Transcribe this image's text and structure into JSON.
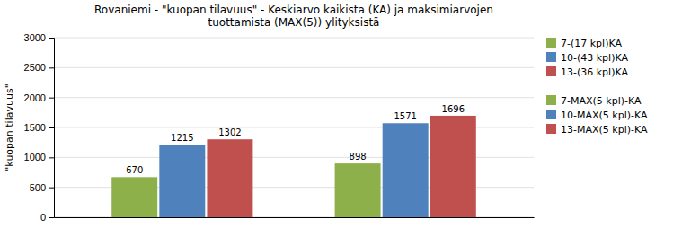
{
  "chart_data": {
    "type": "bar",
    "title": "Rovaniemi - \"kuopan tilavuus\" - Keskiarvo kaikista (KA) ja maksimiarvojen\ntuottamista (MAX(5)) ylityksistä",
    "y_label": "\"kuopan tilavuus\"",
    "categories": [
      null,
      null
    ],
    "series": [
      {
        "name": "7-(17 kpl)KA",
        "color": "#8DB04A",
        "values": [
          670,
          898
        ]
      },
      {
        "name": "10-(43 kpl)KA",
        "color": "#4F81BD",
        "values": [
          1215,
          1571
        ]
      },
      {
        "name": "13-(36 kpl)KA",
        "color": "#C0504D",
        "values": [
          1302,
          1696
        ]
      },
      {
        "name": "7-MAX(5 kpl)-KA",
        "color": "#8DB04A",
        "values": [
          null,
          null
        ]
      },
      {
        "name": "10-MAX(5 kpl)-KA",
        "color": "#4F81BD",
        "values": [
          null,
          null
        ]
      },
      {
        "name": "13-MAX(5 kpl)-KA",
        "color": "#C0504D",
        "values": [
          null,
          null
        ]
      }
    ],
    "ylim": [
      0,
      3000
    ],
    "yticks": [
      0,
      500,
      1000,
      1500,
      2000,
      2500,
      3000
    ],
    "grid": true,
    "legend": "right",
    "data_labels": true
  }
}
